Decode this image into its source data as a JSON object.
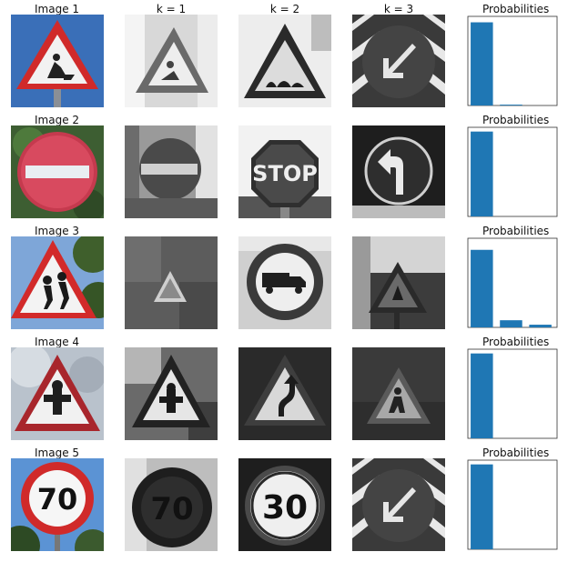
{
  "column_titles": [
    "k = 1",
    "k = 2",
    "k = 3"
  ],
  "rows": [
    {
      "title": "Image 1",
      "prob_title": "Probabilities"
    },
    {
      "title": "Image 2",
      "prob_title": "Probabilities"
    },
    {
      "title": "Image 3",
      "prob_title": "Probabilities"
    },
    {
      "title": "Image 4",
      "prob_title": "Probabilities"
    },
    {
      "title": "Image 5",
      "prob_title": "Probabilities"
    }
  ],
  "chart_data": [
    {
      "type": "bar",
      "title": "Probabilities",
      "values": [
        0.98,
        0.01,
        0.0
      ],
      "ylim": [
        0,
        1.05
      ],
      "bar_color": "#1f77b4"
    },
    {
      "type": "bar",
      "title": "Probabilities",
      "values": [
        1.0,
        0.0,
        0.0
      ],
      "ylim": [
        0,
        1.05
      ],
      "bar_color": "#1f77b4"
    },
    {
      "type": "bar",
      "title": "Probabilities",
      "values": [
        0.87,
        0.08,
        0.03
      ],
      "ylim": [
        0,
        1.0
      ],
      "bar_color": "#1f77b4"
    },
    {
      "type": "bar",
      "title": "Probabilities",
      "values": [
        1.0,
        0.0,
        0.0
      ],
      "ylim": [
        0,
        1.05
      ],
      "bar_color": "#1f77b4"
    },
    {
      "type": "bar",
      "title": "Probabilities",
      "values": [
        1.0,
        0.0,
        0.0
      ],
      "ylim": [
        0,
        1.05
      ],
      "bar_color": "#1f77b4"
    }
  ],
  "images": [
    [
      "warning-roadworks-sign-photo",
      "warning-sign-grayscale",
      "bumpy-road-sign-grayscale",
      "keep-left-sign-grayscale"
    ],
    [
      "no-entry-sign-photo",
      "no-entry-sign-grayscale",
      "stop-sign-grayscale",
      "turn-left-ahead-sign-grayscale"
    ],
    [
      "children-crossing-sign-photo",
      "warning-sign-grayscale",
      "no-trucks-sign-grayscale",
      "warning-sign-grayscale"
    ],
    [
      "warning-sign-photo",
      "general-caution-sign-grayscale",
      "double-curve-sign-grayscale",
      "pedestrians-sign-grayscale"
    ],
    [
      "speed-limit-70-sign-photo",
      "speed-limit-70-sign-grayscale",
      "speed-limit-30-sign-grayscale",
      "keep-left-sign-grayscale"
    ]
  ],
  "sign_texts": {
    "stop": "STOP",
    "speed70": "70",
    "speed30": "30"
  }
}
